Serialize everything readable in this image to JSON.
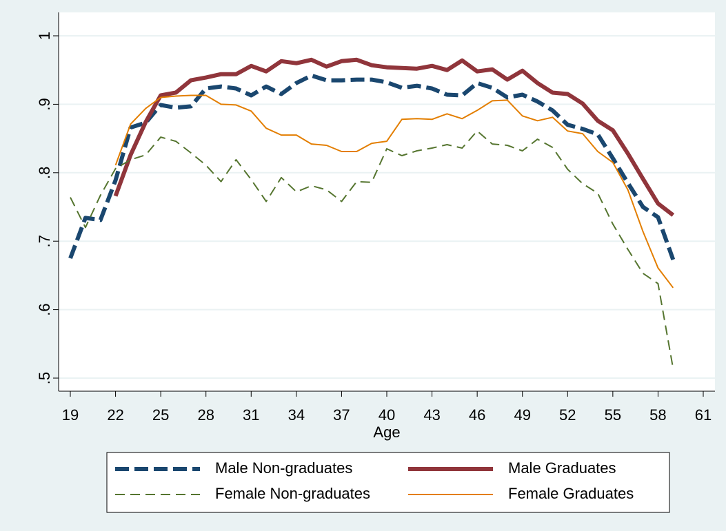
{
  "chart_data": {
    "type": "line",
    "x_label": "Age",
    "xlim": [
      19,
      61
    ],
    "xticks": [
      19,
      22,
      25,
      28,
      31,
      34,
      37,
      40,
      43,
      46,
      49,
      52,
      55,
      58,
      61
    ],
    "ylim": [
      0.5,
      1
    ],
    "yticks": [
      {
        "value": 0.5,
        "label": ".5"
      },
      {
        "value": 0.6,
        "label": ".6"
      },
      {
        "value": 0.7,
        "label": ".7"
      },
      {
        "value": 0.8,
        "label": ".8"
      },
      {
        "value": 0.9,
        "label": ".9"
      },
      1
    ],
    "grid": true,
    "legend": "bottom",
    "series": [
      {
        "name": "Male Non-graduates",
        "color": "#1a476f",
        "dashed": true,
        "width": 6,
        "x": [
          19,
          20,
          21,
          22,
          23,
          24,
          25,
          26,
          27,
          28,
          29,
          30,
          31,
          32,
          33,
          34,
          35,
          36,
          37,
          38,
          39,
          40,
          41,
          42,
          43,
          44,
          45,
          46,
          47,
          48,
          49,
          50,
          51,
          52,
          53,
          54,
          55,
          56,
          57,
          58,
          59
        ],
        "values": [
          0.675,
          0.734,
          0.731,
          0.789,
          0.866,
          0.873,
          0.899,
          0.895,
          0.897,
          0.923,
          0.926,
          0.923,
          0.913,
          0.926,
          0.915,
          0.931,
          0.942,
          0.935,
          0.935,
          0.936,
          0.936,
          0.932,
          0.924,
          0.927,
          0.923,
          0.914,
          0.913,
          0.931,
          0.924,
          0.91,
          0.914,
          0.904,
          0.891,
          0.87,
          0.864,
          0.856,
          0.821,
          0.785,
          0.75,
          0.735,
          0.673
        ]
      },
      {
        "name": "Male Graduates",
        "color": "#90353b",
        "dashed": false,
        "width": 6,
        "x": [
          22,
          23,
          24,
          25,
          26,
          27,
          28,
          29,
          30,
          31,
          32,
          33,
          34,
          35,
          36,
          37,
          38,
          39,
          40,
          41,
          42,
          43,
          44,
          45,
          46,
          47,
          48,
          49,
          50,
          51,
          52,
          53,
          54,
          55,
          56,
          57,
          58,
          59
        ],
        "values": [
          0.766,
          0.826,
          0.874,
          0.913,
          0.917,
          0.935,
          0.939,
          0.944,
          0.944,
          0.956,
          0.948,
          0.963,
          0.96,
          0.965,
          0.955,
          0.963,
          0.965,
          0.957,
          0.954,
          0.953,
          0.952,
          0.956,
          0.95,
          0.964,
          0.948,
          0.951,
          0.936,
          0.949,
          0.931,
          0.917,
          0.915,
          0.901,
          0.876,
          0.862,
          0.828,
          0.791,
          0.755,
          0.738
        ]
      },
      {
        "name": "Female Non-graduates",
        "color": "#55752f",
        "dashed": true,
        "width": 2,
        "x": [
          19,
          20,
          21,
          22,
          23,
          24,
          25,
          26,
          27,
          28,
          29,
          30,
          31,
          32,
          33,
          34,
          35,
          36,
          37,
          38,
          39,
          40,
          41,
          42,
          43,
          44,
          45,
          46,
          47,
          48,
          49,
          50,
          51,
          52,
          53,
          54,
          55,
          56,
          57,
          58,
          59
        ],
        "values": [
          0.764,
          0.72,
          0.767,
          0.806,
          0.819,
          0.826,
          0.852,
          0.846,
          0.829,
          0.811,
          0.787,
          0.819,
          0.79,
          0.758,
          0.793,
          0.772,
          0.781,
          0.775,
          0.758,
          0.787,
          0.786,
          0.835,
          0.825,
          0.832,
          0.836,
          0.841,
          0.836,
          0.861,
          0.842,
          0.84,
          0.832,
          0.849,
          0.837,
          0.805,
          0.784,
          0.77,
          0.725,
          0.688,
          0.653,
          0.638,
          0.514
        ]
      },
      {
        "name": "Female Graduates",
        "color": "#e37e00",
        "dashed": false,
        "width": 2,
        "x": [
          22,
          23,
          24,
          25,
          26,
          27,
          28,
          29,
          30,
          31,
          32,
          33,
          34,
          35,
          36,
          37,
          38,
          39,
          40,
          41,
          42,
          43,
          44,
          45,
          46,
          47,
          48,
          49,
          50,
          51,
          52,
          53,
          54,
          55,
          56,
          57,
          58,
          59
        ],
        "values": [
          0.811,
          0.871,
          0.894,
          0.91,
          0.912,
          0.913,
          0.913,
          0.9,
          0.899,
          0.89,
          0.865,
          0.855,
          0.855,
          0.842,
          0.84,
          0.831,
          0.831,
          0.843,
          0.846,
          0.878,
          0.879,
          0.878,
          0.886,
          0.879,
          0.891,
          0.905,
          0.906,
          0.883,
          0.876,
          0.881,
          0.861,
          0.857,
          0.831,
          0.815,
          0.775,
          0.714,
          0.661,
          0.632
        ]
      }
    ]
  }
}
